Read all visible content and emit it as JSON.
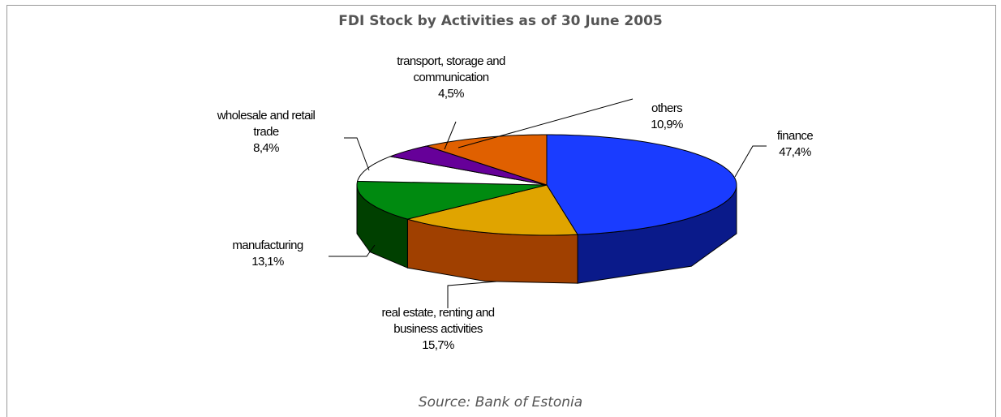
{
  "chart_data": {
    "type": "pie3d",
    "title": "FDI Stock by Activities as of 30 June 2005",
    "source": "Source: Bank of Estonia",
    "categories": [
      "finance",
      "real estate, renting and business activities",
      "manufacturing",
      "wholesale and retail trade",
      "transport, storage and communication",
      "others"
    ],
    "values": [
      47.4,
      15.7,
      13.1,
      8.4,
      4.5,
      10.9
    ],
    "value_labels": [
      "47,4%",
      "15,7%",
      "13,1%",
      "8,4%",
      "4,5%",
      "10,9%"
    ],
    "colors": [
      "#1a3cff",
      "#e0a400",
      "#008a10",
      "#ffffff",
      "#660099",
      "#e06000"
    ],
    "side_colors": [
      "#0a1a8a",
      "#a04000",
      "#004000",
      "#d8d8d8",
      "#330050",
      "#903000"
    ]
  }
}
